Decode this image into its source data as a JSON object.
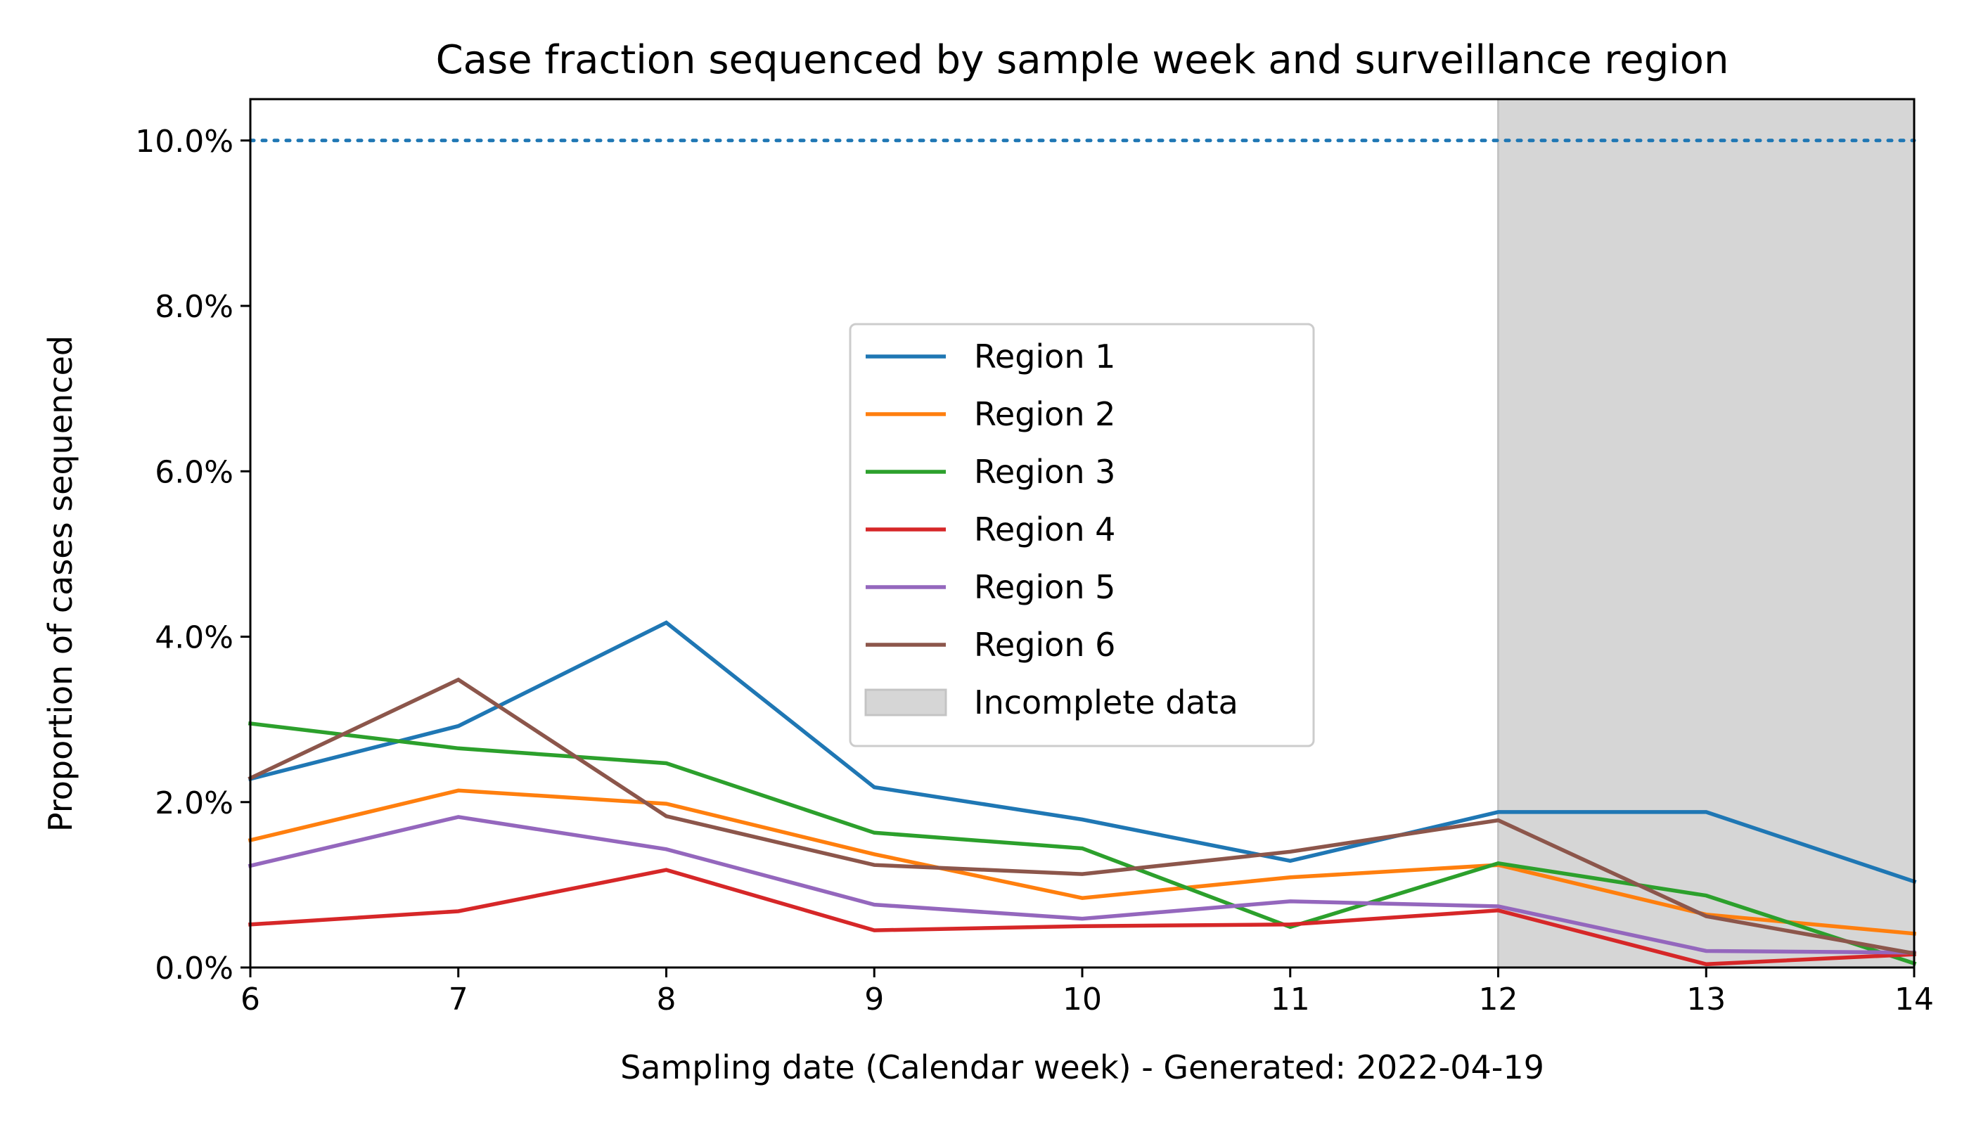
{
  "chart_data": {
    "type": "line",
    "title": "Case fraction sequenced by sample week and surveillance region",
    "xlabel": "Sampling date (Calendar week) - Generated: 2022-04-19",
    "ylabel": "Proportion of cases sequenced",
    "x": [
      6,
      7,
      8,
      9,
      10,
      11,
      12,
      13,
      14
    ],
    "xlim": [
      6,
      14
    ],
    "ylim": [
      0,
      0.105
    ],
    "x_ticks": [
      "6",
      "7",
      "8",
      "9",
      "10",
      "11",
      "12",
      "13",
      "14"
    ],
    "y_ticks": [
      {
        "value": 0.0,
        "label": "0.0%"
      },
      {
        "value": 0.02,
        "label": "2.0%"
      },
      {
        "value": 0.04,
        "label": "4.0%"
      },
      {
        "value": 0.06,
        "label": "6.0%"
      },
      {
        "value": 0.08,
        "label": "8.0%"
      },
      {
        "value": 0.1,
        "label": "10.0%"
      }
    ],
    "grid": false,
    "legend_position": "center",
    "series": [
      {
        "name": "Region 1",
        "color": "#1f77b4",
        "values": [
          0.0228,
          0.0292,
          0.0417,
          0.0218,
          0.0179,
          0.0129,
          0.0188,
          0.0188,
          0.0104
        ]
      },
      {
        "name": "Region 2",
        "color": "#ff7f0e",
        "values": [
          0.0154,
          0.0214,
          0.0198,
          0.0137,
          0.0084,
          0.0109,
          0.0124,
          0.0064,
          0.0041
        ]
      },
      {
        "name": "Region 3",
        "color": "#2ca02c",
        "values": [
          0.0295,
          0.0265,
          0.0247,
          0.0163,
          0.0144,
          0.0049,
          0.0126,
          0.0087,
          0.0005
        ]
      },
      {
        "name": "Region 4",
        "color": "#d62728",
        "values": [
          0.0052,
          0.0068,
          0.0118,
          0.0045,
          0.005,
          0.0052,
          0.0069,
          0.0004,
          0.0016
        ]
      },
      {
        "name": "Region 5",
        "color": "#9467bd",
        "values": [
          0.0123,
          0.0182,
          0.0143,
          0.0076,
          0.0059,
          0.008,
          0.0074,
          0.002,
          0.0018
        ]
      },
      {
        "name": "Region 6",
        "color": "#8c564b",
        "values": [
          0.0229,
          0.0348,
          0.0183,
          0.0124,
          0.0113,
          0.014,
          0.0178,
          0.0062,
          0.0017
        ]
      }
    ],
    "reference_line": {
      "value": 0.1,
      "color": "#1f77b4",
      "style": "dotted"
    },
    "shaded_region": {
      "from": 12,
      "to": 14,
      "label": "Incomplete data",
      "color": "#d6d6d6"
    }
  }
}
